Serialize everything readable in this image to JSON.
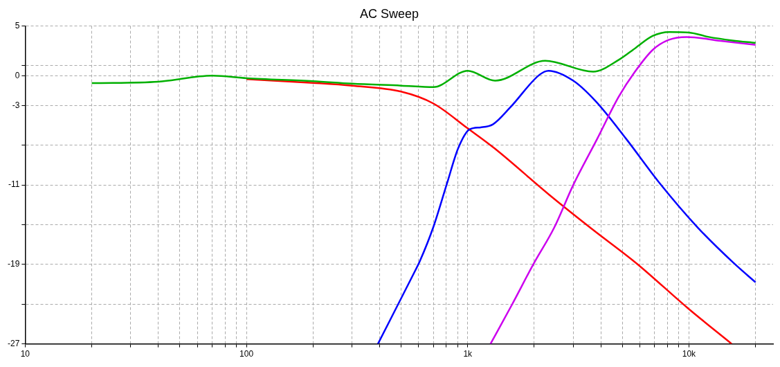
{
  "chart_data": {
    "type": "line",
    "title": "AC Sweep",
    "log": "x",
    "grid": true,
    "marker": "none",
    "xlim": [
      10,
      24000
    ],
    "ylim": [
      -27,
      5
    ],
    "xticks": [
      10,
      {
        "value": 20,
        "label": null
      },
      {
        "value": 30,
        "label": null
      },
      {
        "value": 40,
        "label": null
      },
      {
        "value": 50,
        "label": null
      },
      {
        "value": 60,
        "label": null
      },
      {
        "value": 70,
        "label": null
      },
      {
        "value": 80,
        "label": null
      },
      {
        "value": 90,
        "label": null
      },
      100,
      {
        "value": 200,
        "label": null
      },
      {
        "value": 300,
        "label": null
      },
      {
        "value": 400,
        "label": null
      },
      {
        "value": 500,
        "label": null
      },
      {
        "value": 600,
        "label": null
      },
      {
        "value": 700,
        "label": null
      },
      {
        "value": 800,
        "label": null
      },
      {
        "value": 900,
        "label": null
      },
      {
        "value": 1000,
        "label": "1k"
      },
      {
        "value": 2000,
        "label": null
      },
      {
        "value": 3000,
        "label": null
      },
      {
        "value": 4000,
        "label": null
      },
      {
        "value": 5000,
        "label": null
      },
      {
        "value": 6000,
        "label": null
      },
      {
        "value": 7000,
        "label": null
      },
      {
        "value": 8000,
        "label": null
      },
      {
        "value": 9000,
        "label": null
      },
      {
        "value": 10000,
        "label": "10k"
      },
      {
        "value": 20000,
        "label": null
      }
    ],
    "yticks": [
      5,
      {
        "value": 1,
        "label": null
      },
      0,
      -3,
      {
        "value": -7,
        "label": null
      },
      -11,
      {
        "value": -15,
        "label": null
      },
      -19,
      {
        "value": -23,
        "label": null
      },
      -27
    ],
    "series": [
      {
        "color": "#ff0000",
        "x": [
          100,
          200,
          300,
          500,
          700,
          1000,
          1320,
          2340,
          3630,
          5800,
          9880,
          15600
        ],
        "values": [
          -0.35,
          -0.72,
          -1.0,
          -1.6,
          -2.8,
          -5.3,
          -7.3,
          -12,
          -15.4,
          -18.9,
          -23.4,
          -27
        ]
      },
      {
        "color": "#0000ff",
        "x": [
          393,
          571,
          607,
          698,
          805,
          906,
          1020,
          1145,
          1300,
          1556,
          2113,
          2320,
          3000,
          3800,
          5220,
          7360,
          10970,
          16000,
          20000
        ],
        "values": [
          -27,
          -19.9,
          -18.7,
          -15.3,
          -10.9,
          -7.3,
          -5.4,
          -5.2,
          -4.9,
          -3.2,
          0.1,
          0.5,
          -0.5,
          -2.6,
          -6.4,
          -10.8,
          -15.3,
          -18.9,
          -20.8
        ]
      },
      {
        "color": "#cc00ee",
        "x": [
          1268,
          1590,
          1990,
          2460,
          3000,
          3840,
          4820,
          5680,
          6860,
          8090,
          9770,
          13900,
          20000
        ],
        "values": [
          -27,
          -23,
          -18.9,
          -15.3,
          -11,
          -6.4,
          -2.1,
          0.35,
          2.6,
          3.6,
          3.9,
          3.5,
          3.1
        ]
      },
      {
        "color": "#00b000",
        "x": [
          20,
          40,
          70,
          100,
          200,
          300,
          500,
          700,
          1000,
          1330,
          2240,
          3690,
          4820,
          5740,
          6850,
          8170,
          10000,
          12300,
          15700,
          20000
        ],
        "values": [
          -0.75,
          -0.6,
          0,
          -0.25,
          -0.55,
          -0.8,
          -1.0,
          -1.15,
          0.5,
          -0.5,
          1.5,
          0.4,
          1.6,
          2.8,
          4,
          4.4,
          4.35,
          3.9,
          3.55,
          3.3
        ]
      }
    ]
  }
}
